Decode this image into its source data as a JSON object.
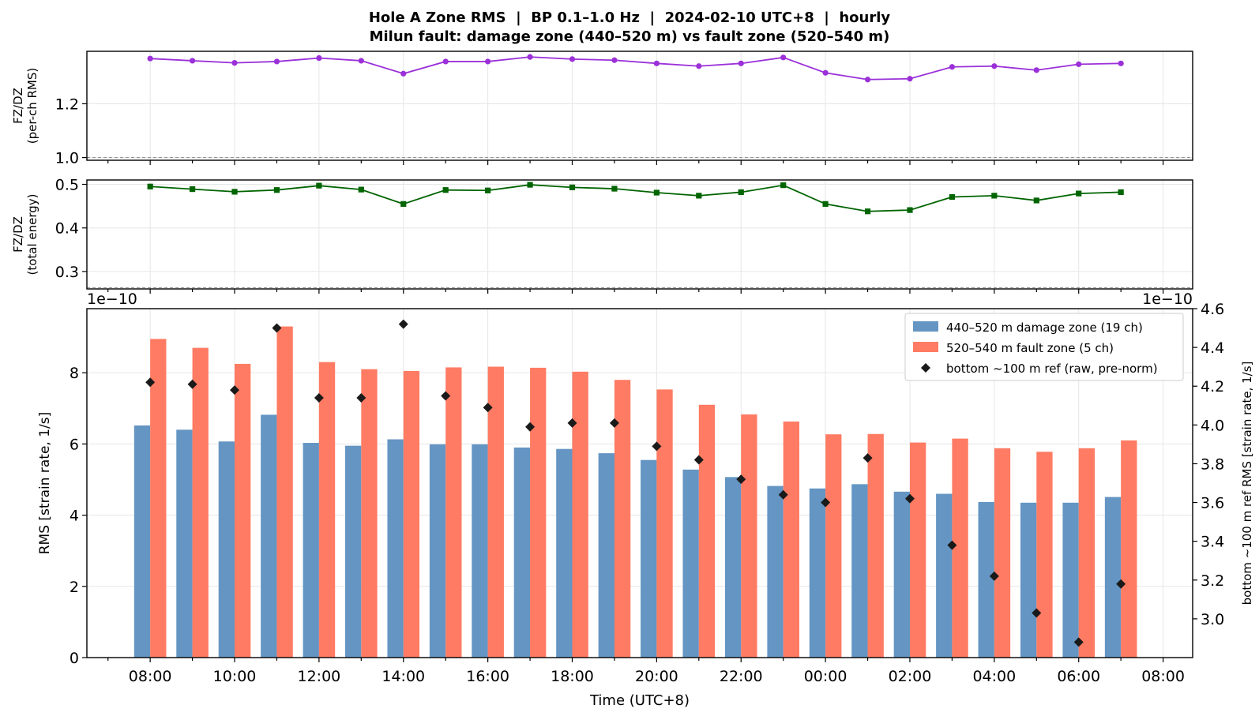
{
  "title_line1": "Hole A Zone RMS  |  BP 0.1–1.0 Hz  |  2024-02-10 UTC+8  |  hourly",
  "title_line2": "Milun fault: damage zone (440–520 m) vs fault zone (520–540 m)",
  "colors": {
    "ratio_rms": "#9b30d9",
    "ratio_energy": "#006400",
    "damage_zone": "#6495c3",
    "fault_zone": "#ff7b63",
    "reference": "#1a1a1a",
    "grid": "#e6e6e6"
  },
  "chart_data": [
    {
      "type": "line",
      "ylabel": [
        "FZ/DZ",
        "(per-ch RMS)"
      ],
      "ylim": [
        0.99,
        1.395
      ],
      "yticks": [
        "1.0",
        "1.2"
      ],
      "reference_line": 1.0,
      "x_hours_from_0800": [
        0,
        1,
        2,
        3,
        4,
        5,
        6,
        7,
        8,
        9,
        10,
        11,
        12,
        13,
        14,
        15,
        16,
        17,
        18,
        19,
        20,
        21,
        22,
        23
      ],
      "values": [
        1.368,
        1.36,
        1.352,
        1.357,
        1.37,
        1.36,
        1.312,
        1.357,
        1.357,
        1.374,
        1.366,
        1.362,
        1.35,
        1.34,
        1.35,
        1.372,
        1.315,
        1.29,
        1.293,
        1.337,
        1.34,
        1.325,
        1.347,
        1.35
      ],
      "grid": true
    },
    {
      "type": "line",
      "ylabel": [
        "FZ/DZ",
        "(total energy)"
      ],
      "ylim": [
        0.26,
        0.51
      ],
      "yticks": [
        "0.3",
        "0.4",
        "0.5"
      ],
      "reference_line": 0.263,
      "x_hours_from_0800": [
        0,
        1,
        2,
        3,
        4,
        5,
        6,
        7,
        8,
        9,
        10,
        11,
        12,
        13,
        14,
        15,
        16,
        17,
        18,
        19,
        20,
        21,
        22,
        23
      ],
      "values": [
        0.495,
        0.489,
        0.483,
        0.487,
        0.497,
        0.488,
        0.455,
        0.487,
        0.486,
        0.499,
        0.493,
        0.49,
        0.481,
        0.474,
        0.482,
        0.498,
        0.455,
        0.438,
        0.441,
        0.471,
        0.474,
        0.463,
        0.479,
        0.482
      ],
      "grid": true
    },
    {
      "type": "bar",
      "xlabel": "Time (UTC+8)",
      "ylabel": "RMS  [strain rate, 1/s]",
      "ylabel_right": "bottom ~100 m ref RMS  [strain rate, 1/s]",
      "offset_left": "1e−10",
      "offset_right": "1e−10",
      "ylim": [
        0,
        9.8
      ],
      "yticks": [
        "0",
        "2",
        "4",
        "6",
        "8"
      ],
      "ylim_right": [
        2.8,
        4.6
      ],
      "yticks_right": [
        "3.0",
        "3.2",
        "3.4",
        "3.6",
        "3.8",
        "4.0",
        "4.2",
        "4.4",
        "4.6"
      ],
      "xlim_hours_from_0800": [
        -1.5,
        24.7
      ],
      "xtick_labels": [
        "08:00",
        "10:00",
        "12:00",
        "14:00",
        "16:00",
        "18:00",
        "20:00",
        "22:00",
        "00:00",
        "02:00",
        "04:00",
        "06:00",
        "08:00"
      ],
      "x_hours_from_0800": [
        0,
        1,
        2,
        3,
        4,
        5,
        6,
        7,
        8,
        9,
        10,
        11,
        12,
        13,
        14,
        15,
        16,
        17,
        18,
        19,
        20,
        21,
        22,
        23
      ],
      "series": [
        {
          "name": "440–520 m  damage zone (19 ch)",
          "values": [
            6.52,
            6.4,
            6.07,
            6.82,
            6.03,
            5.95,
            6.13,
            5.99,
            5.99,
            5.9,
            5.86,
            5.74,
            5.55,
            5.28,
            5.07,
            4.82,
            4.75,
            4.87,
            4.66,
            4.6,
            4.37,
            4.35,
            4.35,
            4.51
          ]
        },
        {
          "name": "520–540 m  fault zone (5 ch)",
          "values": [
            8.95,
            8.7,
            8.25,
            9.3,
            8.3,
            8.1,
            8.05,
            8.15,
            8.17,
            8.14,
            8.03,
            7.8,
            7.53,
            7.1,
            6.83,
            6.63,
            6.27,
            6.28,
            6.04,
            6.15,
            5.88,
            5.78,
            5.88,
            6.1
          ]
        },
        {
          "name": "bottom ~100 m ref (raw, pre-norm)",
          "axis": "right",
          "values": [
            4.22,
            4.21,
            4.18,
            4.5,
            4.14,
            4.14,
            4.52,
            4.15,
            4.09,
            3.99,
            4.01,
            4.01,
            3.89,
            3.82,
            3.72,
            3.64,
            3.6,
            3.83,
            3.62,
            3.38,
            3.22,
            3.03,
            2.88,
            3.18
          ]
        }
      ],
      "legend_position": "top-right",
      "grid": true
    }
  ]
}
